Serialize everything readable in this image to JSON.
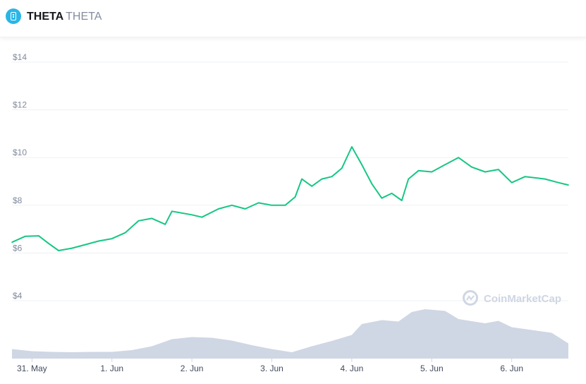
{
  "header": {
    "symbol": "THETA",
    "name": "THETA"
  },
  "watermark": "CoinMarketCap",
  "colors": {
    "price_line": "#16c784",
    "volume_fill": "#cfd6e4",
    "grid": "#eef0f3",
    "logo": "#29b6e6"
  },
  "chart_data": {
    "type": "line",
    "x_range": [
      "2021-05-30 18:00",
      "2021-06-06 17:00"
    ],
    "x_ticks": [
      {
        "t": "2021-05-31 00:00",
        "label": "31. May"
      },
      {
        "t": "2021-06-01 00:00",
        "label": "1. Jun"
      },
      {
        "t": "2021-06-02 00:00",
        "label": "2. Jun"
      },
      {
        "t": "2021-06-03 00:00",
        "label": "3. Jun"
      },
      {
        "t": "2021-06-04 00:00",
        "label": "4. Jun"
      },
      {
        "t": "2021-06-05 00:00",
        "label": "5. Jun"
      },
      {
        "t": "2021-06-06 00:00",
        "label": "6. Jun"
      }
    ],
    "y_ticks": [
      {
        "v": 4,
        "label": "$4"
      },
      {
        "v": 6,
        "label": "$6"
      },
      {
        "v": 8,
        "label": "$8"
      },
      {
        "v": 10,
        "label": "$10"
      },
      {
        "v": 12,
        "label": "$12"
      },
      {
        "v": 14,
        "label": "$14"
      }
    ],
    "ylim": [
      4,
      14
    ],
    "grid": true,
    "series": [
      {
        "points": [
          [
            "2021-05-30 18:00",
            6.45
          ],
          [
            "2021-05-30 22:00",
            6.7
          ],
          [
            "2021-05-31 02:00",
            6.72
          ],
          [
            "2021-05-31 05:00",
            6.4
          ],
          [
            "2021-05-31 08:00",
            6.1
          ],
          [
            "2021-05-31 12:00",
            6.2
          ],
          [
            "2021-05-31 16:00",
            6.35
          ],
          [
            "2021-05-31 20:00",
            6.5
          ],
          [
            "2021-06-01 00:00",
            6.6
          ],
          [
            "2021-06-01 04:00",
            6.85
          ],
          [
            "2021-06-01 08:00",
            7.35
          ],
          [
            "2021-06-01 12:00",
            7.45
          ],
          [
            "2021-06-01 16:00",
            7.2
          ],
          [
            "2021-06-01 18:00",
            7.75
          ],
          [
            "2021-06-02 00:00",
            7.6
          ],
          [
            "2021-06-02 03:00",
            7.5
          ],
          [
            "2021-06-02 08:00",
            7.85
          ],
          [
            "2021-06-02 12:00",
            8.0
          ],
          [
            "2021-06-02 16:00",
            7.85
          ],
          [
            "2021-06-02 20:00",
            8.1
          ],
          [
            "2021-06-03 00:00",
            8.0
          ],
          [
            "2021-06-03 04:00",
            8.0
          ],
          [
            "2021-06-03 07:00",
            8.35
          ],
          [
            "2021-06-03 09:00",
            9.1
          ],
          [
            "2021-06-03 12:00",
            8.8
          ],
          [
            "2021-06-03 15:00",
            9.1
          ],
          [
            "2021-06-03 18:00",
            9.2
          ],
          [
            "2021-06-03 21:00",
            9.55
          ],
          [
            "2021-06-04 00:00",
            10.45
          ],
          [
            "2021-06-04 03:00",
            9.7
          ],
          [
            "2021-06-04 06:00",
            8.9
          ],
          [
            "2021-06-04 09:00",
            8.3
          ],
          [
            "2021-06-04 12:00",
            8.5
          ],
          [
            "2021-06-04 15:00",
            8.2
          ],
          [
            "2021-06-04 17:00",
            9.1
          ],
          [
            "2021-06-04 20:00",
            9.45
          ],
          [
            "2021-06-05 00:00",
            9.4
          ],
          [
            "2021-06-05 04:00",
            9.7
          ],
          [
            "2021-06-05 08:00",
            10.0
          ],
          [
            "2021-06-05 12:00",
            9.6
          ],
          [
            "2021-06-05 16:00",
            9.4
          ],
          [
            "2021-06-05 20:00",
            9.5
          ],
          [
            "2021-06-06 00:00",
            8.95
          ],
          [
            "2021-06-06 04:00",
            9.2
          ],
          [
            "2021-06-06 10:00",
            9.1
          ],
          [
            "2021-06-06 14:00",
            8.95
          ],
          [
            "2021-06-06 17:00",
            8.85
          ]
        ]
      }
    ],
    "volume_area": {
      "points": [
        [
          "2021-05-30 18:00",
          0.25
        ],
        [
          "2021-05-31 00:00",
          0.19
        ],
        [
          "2021-05-31 06:00",
          0.17
        ],
        [
          "2021-05-31 12:00",
          0.16
        ],
        [
          "2021-05-31 18:00",
          0.17
        ],
        [
          "2021-06-01 00:00",
          0.17
        ],
        [
          "2021-06-01 06:00",
          0.22
        ],
        [
          "2021-06-01 12:00",
          0.33
        ],
        [
          "2021-06-01 18:00",
          0.53
        ],
        [
          "2021-06-02 00:00",
          0.59
        ],
        [
          "2021-06-02 06:00",
          0.57
        ],
        [
          "2021-06-02 12:00",
          0.49
        ],
        [
          "2021-06-02 18:00",
          0.36
        ],
        [
          "2021-06-03 00:00",
          0.25
        ],
        [
          "2021-06-03 06:00",
          0.16
        ],
        [
          "2021-06-03 12:00",
          0.33
        ],
        [
          "2021-06-03 18:00",
          0.48
        ],
        [
          "2021-06-04 00:00",
          0.65
        ],
        [
          "2021-06-04 03:00",
          0.96
        ],
        [
          "2021-06-04 09:00",
          1.07
        ],
        [
          "2021-06-04 14:00",
          1.03
        ],
        [
          "2021-06-04 18:00",
          1.3
        ],
        [
          "2021-06-04 22:00",
          1.38
        ],
        [
          "2021-06-05 04:00",
          1.33
        ],
        [
          "2021-06-05 08:00",
          1.1
        ],
        [
          "2021-06-05 16:00",
          0.98
        ],
        [
          "2021-06-05 20:00",
          1.05
        ],
        [
          "2021-06-06 00:00",
          0.87
        ],
        [
          "2021-06-06 06:00",
          0.79
        ],
        [
          "2021-06-06 12:00",
          0.71
        ],
        [
          "2021-06-06 17:00",
          0.41
        ]
      ]
    }
  }
}
